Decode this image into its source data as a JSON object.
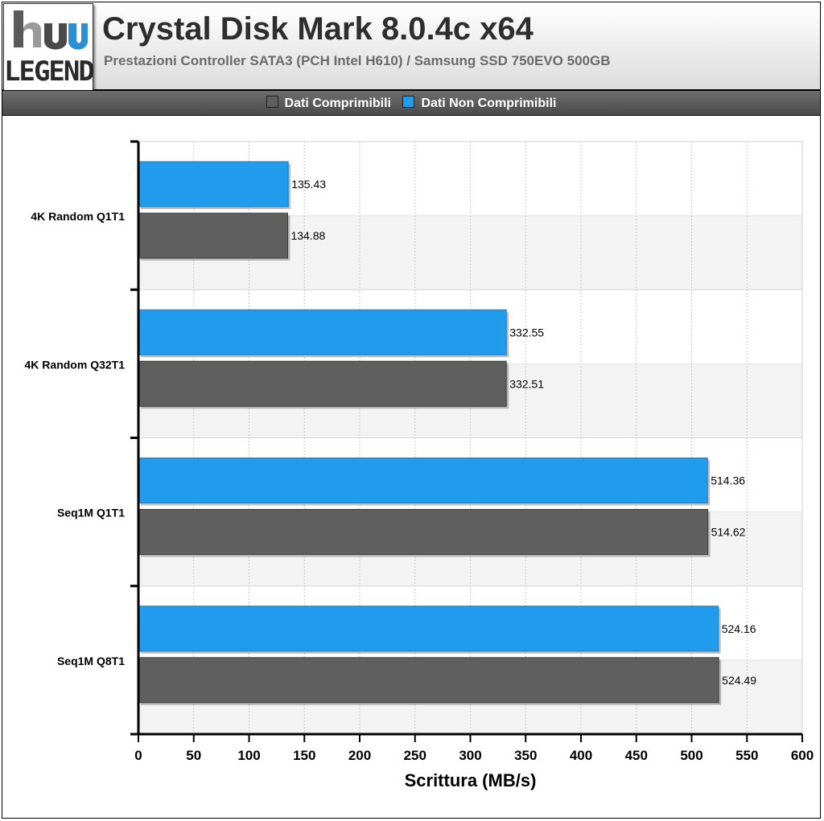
{
  "header": {
    "logo_text": "LEGEND",
    "title": "Crystal Disk Mark 8.0.4c x64",
    "subtitle": "Prestazioni Controller SATA3 (PCH Intel H610) / Samsung SSD 750EVO 500GB"
  },
  "colors": {
    "compressible": "#5f5f5f",
    "non_compressible": "#219ced",
    "band": "#f3f3f3",
    "grid": "#c8c8c8"
  },
  "chart_data": {
    "type": "bar",
    "orientation": "horizontal",
    "title": "Crystal Disk Mark 8.0.4c x64",
    "subtitle": "Prestazioni Controller SATA3 (PCH Intel H610) / Samsung SSD 750EVO 500GB",
    "xlabel": "Scrittura (MB/s)",
    "ylabel": "",
    "xlim": [
      0,
      600
    ],
    "xticks": [
      0,
      50,
      100,
      150,
      200,
      250,
      300,
      350,
      400,
      450,
      500,
      550,
      600
    ],
    "grid": true,
    "legend_position": "top",
    "categories": [
      "4K Random Q1T1",
      "4K Random Q32T1",
      "Seq1M Q1T1",
      "Seq1M Q8T1"
    ],
    "series": [
      {
        "name": "Dati Comprimibili",
        "color": "#5f5f5f",
        "values": [
          134.88,
          332.51,
          514.62,
          524.49
        ],
        "labels": [
          "134.88",
          "332.51",
          "514.62",
          "524.49"
        ]
      },
      {
        "name": "Dati Non Comprimibili",
        "color": "#219ced",
        "values": [
          135.43,
          332.55,
          514.36,
          524.16
        ],
        "labels": [
          "135.43",
          "332.55",
          "514.36",
          "524.16"
        ]
      }
    ]
  }
}
